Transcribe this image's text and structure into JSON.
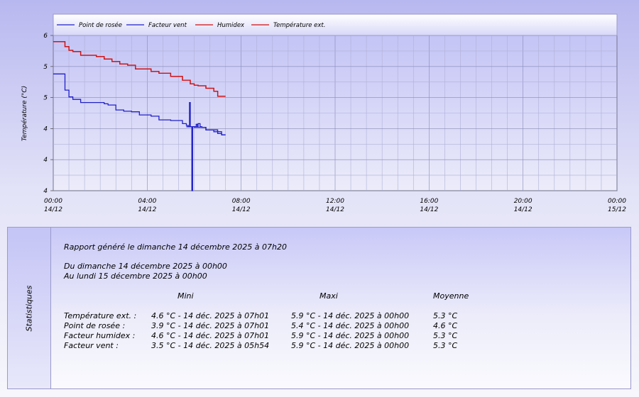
{
  "chart_data": {
    "type": "line",
    "ylabel": "Température (°C)",
    "y_tick_labels": [
      "6",
      "5",
      "5",
      "4",
      "4",
      "4"
    ],
    "ylim": [
      3.5,
      6.0
    ],
    "xlim": [
      "2025-12-14 00:00",
      "2025-12-15 00:00"
    ],
    "x_tick_labels": [
      {
        "time": "00:00",
        "date": "14/12"
      },
      {
        "time": "04:00",
        "date": "14/12"
      },
      {
        "time": "08:00",
        "date": "14/12"
      },
      {
        "time": "12:00",
        "date": "14/12"
      },
      {
        "time": "16:00",
        "date": "14/12"
      },
      {
        "time": "20:00",
        "date": "14/12"
      },
      {
        "time": "00:00",
        "date": "15/12"
      }
    ],
    "grid": true,
    "legend_position": "top",
    "series": [
      {
        "name": "Point de rosée",
        "color": "#2020c8",
        "x": [
          "00:00",
          "00:25",
          "00:30",
          "00:40",
          "00:50",
          "01:10",
          "01:20",
          "01:50",
          "02:10",
          "02:20",
          "02:40",
          "03:00",
          "03:20",
          "03:40",
          "03:50",
          "04:10",
          "04:30",
          "05:00",
          "05:30",
          "05:40",
          "05:45",
          "05:50",
          "06:00",
          "06:10",
          "06:30",
          "06:50",
          "07:10",
          "07:20"
        ],
        "y": [
          5.38,
          5.38,
          5.12,
          5.01,
          4.97,
          4.92,
          4.92,
          4.92,
          4.9,
          4.88,
          4.8,
          4.78,
          4.77,
          4.72,
          4.72,
          4.7,
          4.64,
          4.63,
          4.58,
          4.55,
          4.53,
          4.53,
          4.52,
          4.52,
          4.48,
          4.45,
          4.4,
          4.4
        ]
      },
      {
        "name": "Facteur vent",
        "color": "#2020c8",
        "x": [
          "05:40",
          "05:45",
          "05:48",
          "05:50",
          "05:54",
          "05:56",
          "06:00",
          "06:05",
          "06:08",
          "06:10",
          "06:15",
          "06:20",
          "06:30",
          "07:00",
          "07:10",
          "07:15",
          "07:20"
        ],
        "y": [
          4.53,
          4.53,
          4.92,
          4.53,
          3.5,
          4.53,
          4.53,
          4.57,
          4.53,
          4.58,
          4.53,
          4.52,
          4.48,
          4.42,
          4.4,
          4.4,
          4.4
        ]
      },
      {
        "name": "Humidex",
        "color": "#d01010",
        "x": [
          "00:00",
          "00:20",
          "00:30",
          "00:40",
          "00:50",
          "01:10",
          "01:30",
          "01:50",
          "02:10",
          "02:30",
          "02:50",
          "03:10",
          "03:30",
          "03:50",
          "04:10",
          "04:30",
          "05:00",
          "05:30",
          "05:50",
          "06:00",
          "06:10",
          "06:30",
          "06:50",
          "07:00",
          "07:20"
        ],
        "y": [
          5.9,
          5.9,
          5.82,
          5.76,
          5.74,
          5.68,
          5.68,
          5.66,
          5.62,
          5.58,
          5.54,
          5.52,
          5.46,
          5.46,
          5.42,
          5.39,
          5.34,
          5.28,
          5.22,
          5.2,
          5.19,
          5.15,
          5.1,
          5.02,
          5.02
        ]
      },
      {
        "name": "Température ext.",
        "color": "#d01010",
        "x": [
          "00:00",
          "00:20",
          "00:30",
          "00:40",
          "00:50",
          "01:10",
          "01:30",
          "01:50",
          "02:10",
          "02:30",
          "02:50",
          "03:10",
          "03:30",
          "03:50",
          "04:10",
          "04:30",
          "05:00",
          "05:30",
          "05:50",
          "06:00",
          "06:10",
          "06:30",
          "06:50",
          "07:00",
          "07:20"
        ],
        "y": [
          5.9,
          5.9,
          5.82,
          5.76,
          5.74,
          5.68,
          5.68,
          5.66,
          5.62,
          5.58,
          5.54,
          5.52,
          5.46,
          5.46,
          5.42,
          5.39,
          5.34,
          5.28,
          5.22,
          5.2,
          5.19,
          5.15,
          5.1,
          5.02,
          5.02
        ]
      }
    ]
  },
  "stats": {
    "title": "Statistiques",
    "report_line": "Rapport généré le dimanche 14 décembre 2025 à 07h20",
    "from_line": "Du dimanche 14 décembre 2025 à 00h00",
    "to_line": "Au lundi 15 décembre 2025 à 00h00",
    "headers": {
      "mini": "Mini",
      "maxi": "Maxi",
      "moyenne": "Moyenne"
    },
    "rows": [
      {
        "label": "Température ext. :",
        "mini": "4.6 °C - 14 déc. 2025 à 07h01",
        "maxi": "5.9 °C - 14 déc. 2025 à 00h00",
        "moyenne": "5.3 °C"
      },
      {
        "label": "Point de rosée :",
        "mini": "3.9 °C - 14 déc. 2025 à 07h01",
        "maxi": "5.4 °C - 14 déc. 2025 à 00h00",
        "moyenne": "4.6 °C"
      },
      {
        "label": "Facteur humidex :",
        "mini": "4.6 °C - 14 déc. 2025 à 07h01",
        "maxi": "5.9 °C - 14 déc. 2025 à 00h00",
        "moyenne": "5.3 °C"
      },
      {
        "label": "Facteur vent :",
        "mini": "3.5 °C - 14 déc. 2025 à 05h54",
        "maxi": "5.9 °C - 14 déc. 2025 à 00h00",
        "moyenne": "5.3 °C"
      }
    ]
  }
}
